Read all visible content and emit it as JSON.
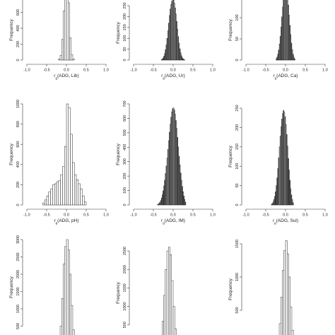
{
  "figure": {
    "background": "#ffffff",
    "bar_fill": "#ffffff",
    "bar_fill_alt": "#bdbdbd",
    "bar_stroke": "#111111"
  },
  "chart_data": [
    {
      "id": "p1",
      "type": "bar",
      "xlabel": "r_g(ADG, Lib)",
      "ylabel": "Frequency",
      "xlim": [
        -1,
        1
      ],
      "ylim": [
        0,
        800
      ],
      "xticks": [
        "-1.0",
        "-0.5",
        "0.0",
        "0.5",
        "1.0"
      ],
      "yticks": [
        "0",
        "200",
        "400",
        "600",
        "800"
      ],
      "bin_width": 0.04,
      "bins": [
        -0.2,
        -0.16,
        -0.12,
        -0.08,
        -0.04,
        0.0,
        0.04,
        0.08,
        0.12,
        0.16
      ],
      "values": [
        15,
        60,
        260,
        620,
        900,
        940,
        720,
        280,
        70,
        15
      ],
      "shaded": false
    },
    {
      "id": "p2",
      "type": "bar",
      "xlabel": "r_g(ADG, Ur)",
      "ylabel": "Frequency",
      "xlim": [
        -1,
        1
      ],
      "ylim": [
        0,
        250
      ],
      "xticks": [
        "-1.0",
        "-0.5",
        "0.0",
        "0.5",
        "1.0"
      ],
      "yticks": [
        "0",
        "50",
        "100",
        "150",
        "200",
        "250"
      ],
      "bin_width": 0.02,
      "bins": [
        -0.3,
        -0.28,
        -0.26,
        -0.24,
        -0.22,
        -0.2,
        -0.18,
        -0.16,
        -0.14,
        -0.12,
        -0.1,
        -0.08,
        -0.06,
        -0.04,
        -0.02,
        0.0,
        0.02,
        0.04,
        0.06,
        0.08,
        0.1,
        0.12,
        0.14,
        0.16,
        0.18,
        0.2,
        0.22,
        0.24,
        0.26,
        0.28
      ],
      "values": [
        2,
        5,
        10,
        18,
        30,
        48,
        70,
        100,
        135,
        170,
        205,
        235,
        255,
        270,
        278,
        275,
        262,
        240,
        212,
        178,
        142,
        108,
        78,
        52,
        33,
        20,
        11,
        6,
        3,
        1
      ],
      "shaded": true
    },
    {
      "id": "p3",
      "type": "bar",
      "xlabel": "r_g(ADG, Ca)",
      "ylabel": "Frequency",
      "xlim": [
        -1,
        1
      ],
      "ylim": [
        0,
        150
      ],
      "xticks": [
        "-1.0",
        "-0.5",
        "0.0",
        "0.5",
        "1.0"
      ],
      "yticks": [
        "0",
        "50",
        "100",
        "150"
      ],
      "bin_width": 0.02,
      "bins": [
        -0.24,
        -0.22,
        -0.2,
        -0.18,
        -0.16,
        -0.14,
        -0.12,
        -0.1,
        -0.08,
        -0.06,
        -0.04,
        -0.02,
        0.0,
        0.02,
        0.04,
        0.06,
        0.08,
        0.1,
        0.12,
        0.14,
        0.16,
        0.18,
        0.2,
        0.22
      ],
      "values": [
        3,
        7,
        14,
        24,
        38,
        56,
        78,
        102,
        125,
        145,
        160,
        168,
        170,
        164,
        150,
        130,
        106,
        82,
        60,
        40,
        25,
        14,
        7,
        3
      ],
      "shaded": true
    },
    {
      "id": "p4",
      "type": "bar",
      "xlabel": "r_g(ADG, pH)",
      "ylabel": "Frequency",
      "xlim": [
        -1,
        1
      ],
      "ylim": [
        0,
        1000
      ],
      "xticks": [
        "-1.0",
        "-0.5",
        "0.0",
        "0.5",
        "1.0"
      ],
      "yticks": [
        "0",
        "200",
        "400",
        "600",
        "800",
        "1000"
      ],
      "bin_width": 0.05,
      "bins": [
        -0.6,
        -0.55,
        -0.5,
        -0.45,
        -0.4,
        -0.35,
        -0.3,
        -0.25,
        -0.2,
        -0.15,
        -0.1,
        -0.05,
        0.0,
        0.05,
        0.1,
        0.15,
        0.2,
        0.25,
        0.3,
        0.35,
        0.4,
        0.45
      ],
      "values": [
        20,
        50,
        90,
        130,
        160,
        200,
        210,
        230,
        240,
        300,
        380,
        580,
        1000,
        960,
        700,
        420,
        300,
        250,
        210,
        160,
        90,
        30
      ],
      "shaded": false
    },
    {
      "id": "p5",
      "type": "bar",
      "xlabel": "r_g(ADG, IM)",
      "ylabel": "Frequency",
      "xlim": [
        -1,
        1
      ],
      "ylim": [
        0,
        700
      ],
      "xticks": [
        "-1.0",
        "-0.5",
        "0.0",
        "0.5",
        "1.0"
      ],
      "yticks": [
        "0",
        "100",
        "200",
        "300",
        "400",
        "500",
        "600",
        "700"
      ],
      "bin_width": 0.02,
      "bins": [
        -0.4,
        -0.38,
        -0.36,
        -0.34,
        -0.32,
        -0.3,
        -0.28,
        -0.26,
        -0.24,
        -0.22,
        -0.2,
        -0.18,
        -0.16,
        -0.14,
        -0.12,
        -0.1,
        -0.08,
        -0.06,
        -0.04,
        -0.02,
        0.0,
        0.02,
        0.04,
        0.06,
        0.08,
        0.1,
        0.12,
        0.14,
        0.16,
        0.18,
        0.2,
        0.22,
        0.24,
        0.26,
        0.28,
        0.3
      ],
      "values": [
        3,
        6,
        12,
        20,
        32,
        48,
        70,
        98,
        132,
        172,
        218,
        270,
        325,
        385,
        445,
        505,
        560,
        608,
        645,
        668,
        672,
        658,
        628,
        585,
        530,
        468,
        402,
        338,
        278,
        222,
        172,
        128,
        92,
        62,
        38,
        20
      ],
      "shaded": true
    },
    {
      "id": "p6",
      "type": "bar",
      "xlabel": "r_g(ADG, Sul)",
      "ylabel": "Frequency",
      "xlim": [
        -1,
        1
      ],
      "ylim": [
        0,
        250
      ],
      "xticks": [
        "-1.0",
        "-0.5",
        "0.0",
        "0.5",
        "1.0"
      ],
      "yticks": [
        "0",
        "50",
        "100",
        "150",
        "200",
        "250"
      ],
      "bin_width": 0.02,
      "bins": [
        -0.36,
        -0.34,
        -0.32,
        -0.3,
        -0.28,
        -0.26,
        -0.24,
        -0.22,
        -0.2,
        -0.18,
        -0.16,
        -0.14,
        -0.12,
        -0.1,
        -0.08,
        -0.06,
        -0.04,
        -0.02,
        0.0,
        0.02,
        0.04,
        0.06,
        0.08,
        0.1,
        0.12,
        0.14,
        0.16,
        0.18
      ],
      "values": [
        2,
        4,
        8,
        14,
        22,
        34,
        50,
        70,
        94,
        122,
        150,
        178,
        202,
        222,
        236,
        244,
        240,
        228,
        208,
        182,
        152,
        120,
        90,
        64,
        42,
        26,
        14,
        6
      ],
      "shaded": true
    },
    {
      "id": "p7",
      "type": "bar",
      "xlabel": "",
      "ylabel": "Frequency",
      "xlim": [
        -1,
        1
      ],
      "ylim": [
        0,
        3000
      ],
      "xticks": [],
      "yticks": [
        "500",
        "1000",
        "1500",
        "2000",
        "2500",
        "3000"
      ],
      "bin_width": 0.04,
      "bins": [
        -0.16,
        -0.12,
        -0.08,
        -0.04,
        0.0,
        0.04,
        0.08,
        0.12,
        0.16
      ],
      "values": [
        500,
        1300,
        2300,
        2800,
        3000,
        2700,
        2000,
        1100,
        400
      ],
      "shaded": false
    },
    {
      "id": "p8",
      "type": "bar",
      "xlabel": "",
      "ylabel": "Frequency",
      "xlim": [
        -1,
        1
      ],
      "ylim": [
        0,
        2500
      ],
      "xticks": [],
      "yticks": [
        "500",
        "1000",
        "1500",
        "2000",
        "2500"
      ],
      "bin_width": 0.04,
      "bins": [
        -0.28,
        -0.24,
        -0.2,
        -0.16,
        -0.12,
        -0.08,
        -0.04,
        0.0,
        0.04
      ],
      "values": [
        600,
        1300,
        2000,
        2500,
        2600,
        2400,
        1700,
        1000,
        400
      ],
      "shaded": false
    },
    {
      "id": "p9",
      "type": "bar",
      "xlabel": "",
      "ylabel": "Frequency",
      "xlim": [
        -1,
        1
      ],
      "ylim": [
        0,
        1500
      ],
      "xticks": [],
      "yticks": [
        "500",
        "1000",
        "1500"
      ],
      "bin_width": 0.04,
      "bins": [
        -0.16,
        -0.12,
        -0.08,
        -0.04,
        0.0,
        0.04,
        0.08,
        0.12,
        0.16
      ],
      "values": [
        300,
        700,
        1100,
        1400,
        1550,
        1350,
        1000,
        550,
        200
      ],
      "shaded": false
    }
  ]
}
